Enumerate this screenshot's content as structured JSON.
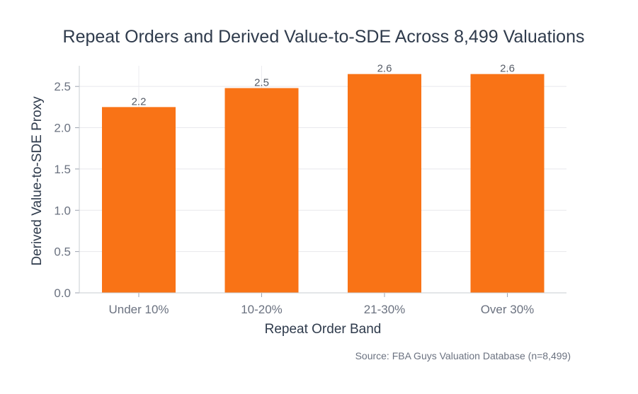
{
  "chart_data": {
    "type": "bar",
    "title": "Repeat Orders and Derived Value-to-SDE Across 8,499 Valuations",
    "xlabel": "Repeat Order Band",
    "ylabel": "Derived Value-to-SDE Proxy",
    "categories": [
      "Under 10%",
      "10-20%",
      "21-30%",
      "Over 30%"
    ],
    "values": [
      2.25,
      2.48,
      2.65,
      2.65
    ],
    "data_labels": [
      "2.2",
      "2.5",
      "2.6",
      "2.6"
    ],
    "ylim": [
      0,
      2.75
    ],
    "yticks": [
      0.0,
      0.5,
      1.0,
      1.5,
      2.0,
      2.5
    ],
    "ytick_labels": [
      "0.0",
      "0.5",
      "1.0",
      "1.5",
      "2.0",
      "2.5"
    ],
    "grid": true,
    "bar_color": "#f97316",
    "source": "Source: FBA Guys Valuation Database (n=8,499)"
  }
}
